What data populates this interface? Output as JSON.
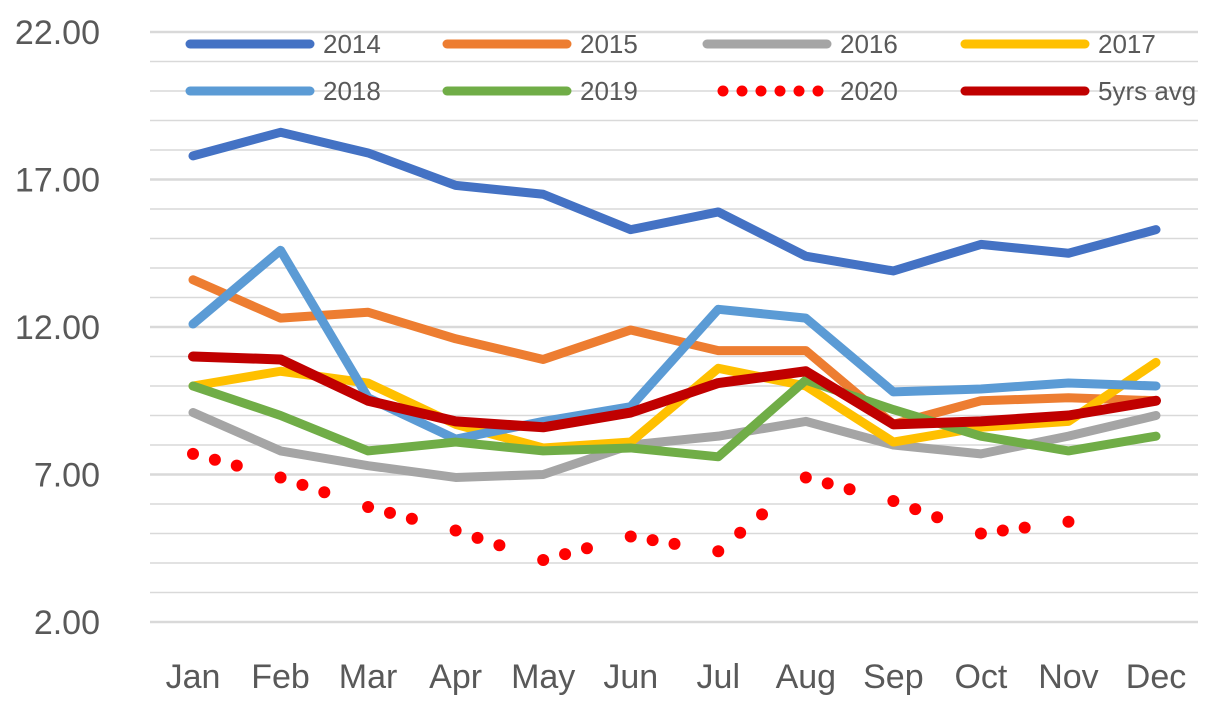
{
  "chart_data": {
    "type": "line",
    "title": "",
    "xlabel": "",
    "ylabel": "",
    "categories": [
      "Jan",
      "Feb",
      "Mar",
      "Apr",
      "May",
      "Jun",
      "Jul",
      "Aug",
      "Sep",
      "Oct",
      "Nov",
      "Dec"
    ],
    "ylim": [
      2,
      22
    ],
    "yticks": [
      2,
      7,
      12,
      17,
      22
    ],
    "ytick_labels": [
      "2.00",
      "7.00",
      "12.00",
      "17.00",
      "22.00"
    ],
    "minor_grid_step": 1,
    "grid": true,
    "legend": "top",
    "series": [
      {
        "name": "2014",
        "color": "#4472C4",
        "style": "solid",
        "values": [
          17.8,
          18.6,
          17.9,
          16.8,
          16.5,
          15.3,
          15.9,
          14.4,
          13.9,
          14.8,
          14.5,
          15.3
        ]
      },
      {
        "name": "2015",
        "color": "#ED7D31",
        "style": "solid",
        "values": [
          13.6,
          12.3,
          12.5,
          11.6,
          10.9,
          11.9,
          11.2,
          11.2,
          8.7,
          9.5,
          9.6,
          9.5
        ]
      },
      {
        "name": "2016",
        "color": "#A5A5A5",
        "style": "solid",
        "values": [
          9.1,
          7.8,
          7.3,
          6.9,
          7.0,
          8.0,
          8.3,
          8.8,
          8.0,
          7.7,
          8.3,
          9.0
        ]
      },
      {
        "name": "2017",
        "color": "#FFC000",
        "style": "solid",
        "values": [
          10.0,
          10.5,
          10.1,
          8.7,
          7.9,
          8.1,
          10.6,
          10.0,
          8.1,
          8.6,
          8.8,
          10.8
        ]
      },
      {
        "name": "2018",
        "color": "#5B9BD5",
        "style": "solid",
        "values": [
          12.1,
          14.6,
          9.6,
          8.2,
          8.8,
          9.3,
          12.6,
          12.3,
          9.8,
          9.9,
          10.1,
          10.0
        ]
      },
      {
        "name": "2019",
        "color": "#70AD47",
        "style": "solid",
        "values": [
          10.0,
          9.0,
          7.8,
          8.1,
          7.8,
          7.9,
          7.6,
          10.2,
          9.2,
          8.3,
          7.8,
          8.3
        ]
      },
      {
        "name": "2020",
        "color": "#FF0000",
        "style": "dotted",
        "values": [
          7.7,
          6.9,
          5.9,
          5.1,
          4.1,
          4.9,
          4.4,
          6.9,
          6.1,
          5.0,
          5.4,
          null
        ]
      },
      {
        "name": "5yrs avg",
        "color": "#C00000",
        "style": "solid",
        "values": [
          11.0,
          10.9,
          9.5,
          8.8,
          8.6,
          9.1,
          10.1,
          10.5,
          8.7,
          8.8,
          9.0,
          9.5
        ]
      }
    ]
  }
}
